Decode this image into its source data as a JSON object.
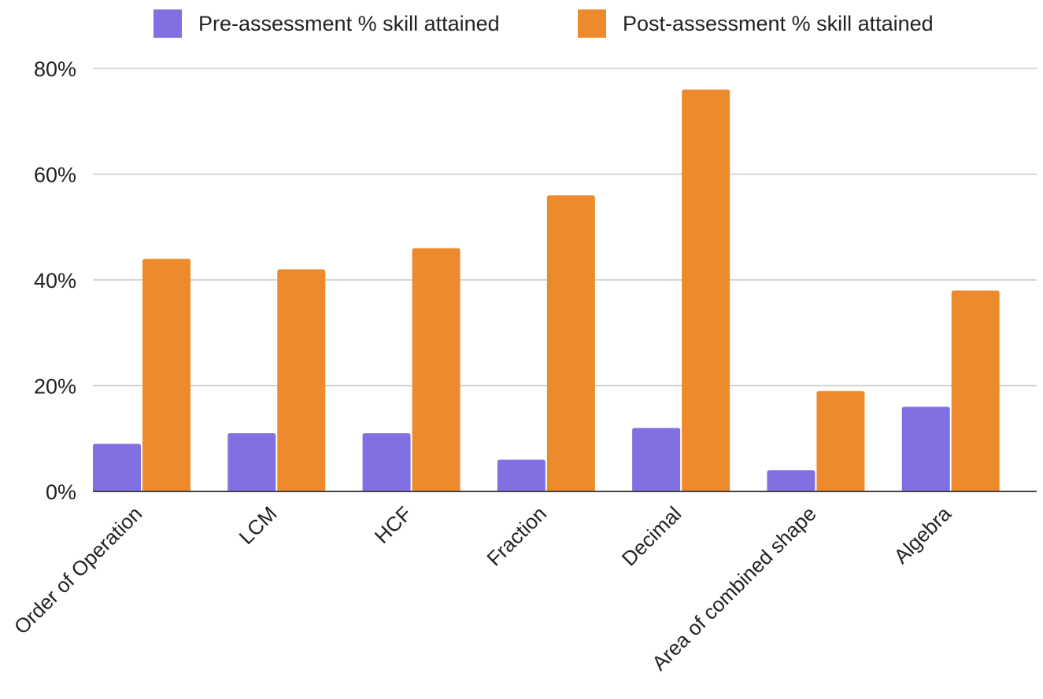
{
  "chart_data": {
    "type": "bar",
    "categories": [
      "Order of Operation",
      "LCM",
      "HCF",
      "Fraction",
      "Decimal",
      "Area of combined shape",
      "Algebra"
    ],
    "series": [
      {
        "name": "Pre-assessment % skill attained",
        "color": "#8170e2",
        "values": [
          9,
          11,
          11,
          6,
          12,
          4,
          16
        ]
      },
      {
        "name": "Post-assessment % skill attained",
        "color": "#ee8a2e",
        "values": [
          44,
          42,
          46,
          56,
          76,
          19,
          38
        ]
      }
    ],
    "y_ticks": [
      "0%",
      "20%",
      "40%",
      "60%",
      "80%"
    ],
    "ylim": [
      0,
      80
    ],
    "grid": true,
    "legend_position": "top-center",
    "title": "",
    "xlabel": "",
    "ylabel": ""
  }
}
